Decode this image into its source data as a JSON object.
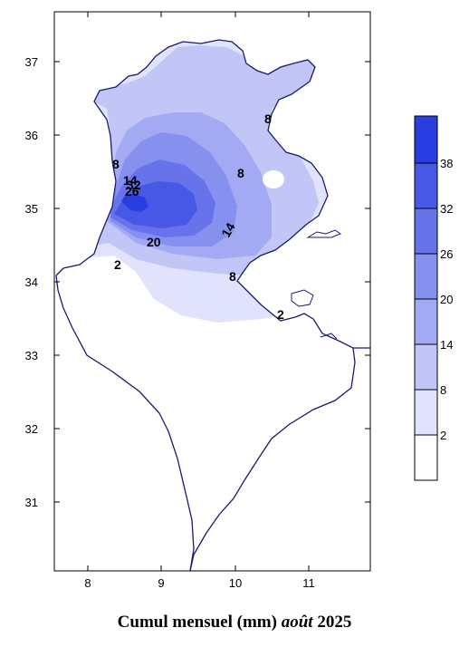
{
  "caption": {
    "prefix": "Cumul mensuel (mm)",
    "month": "août",
    "year": "2025"
  },
  "axes": {
    "x_ticks": [
      "8",
      "9",
      "10",
      "11"
    ],
    "y_ticks": [
      "37",
      "36",
      "35",
      "34",
      "33",
      "32",
      "31"
    ],
    "xlim": [
      7.45,
      11.85
    ],
    "ylim": [
      30.3,
      37.75
    ],
    "unit": "degrees"
  },
  "legend": {
    "levels": [
      "2",
      "8",
      "14",
      "20",
      "26",
      "32",
      "38"
    ],
    "colors": [
      "#ffffff",
      "#e0e3fb",
      "#c1c6f7",
      "#a3aaf3",
      "#8590ef",
      "#6673eb",
      "#4858e6",
      "#2a3de1"
    ]
  },
  "contour_labels": [
    "2",
    "8",
    "14",
    "20",
    "26",
    "32"
  ],
  "colors": {
    "coast": "#1a1a6e",
    "frame": "#000000"
  }
}
